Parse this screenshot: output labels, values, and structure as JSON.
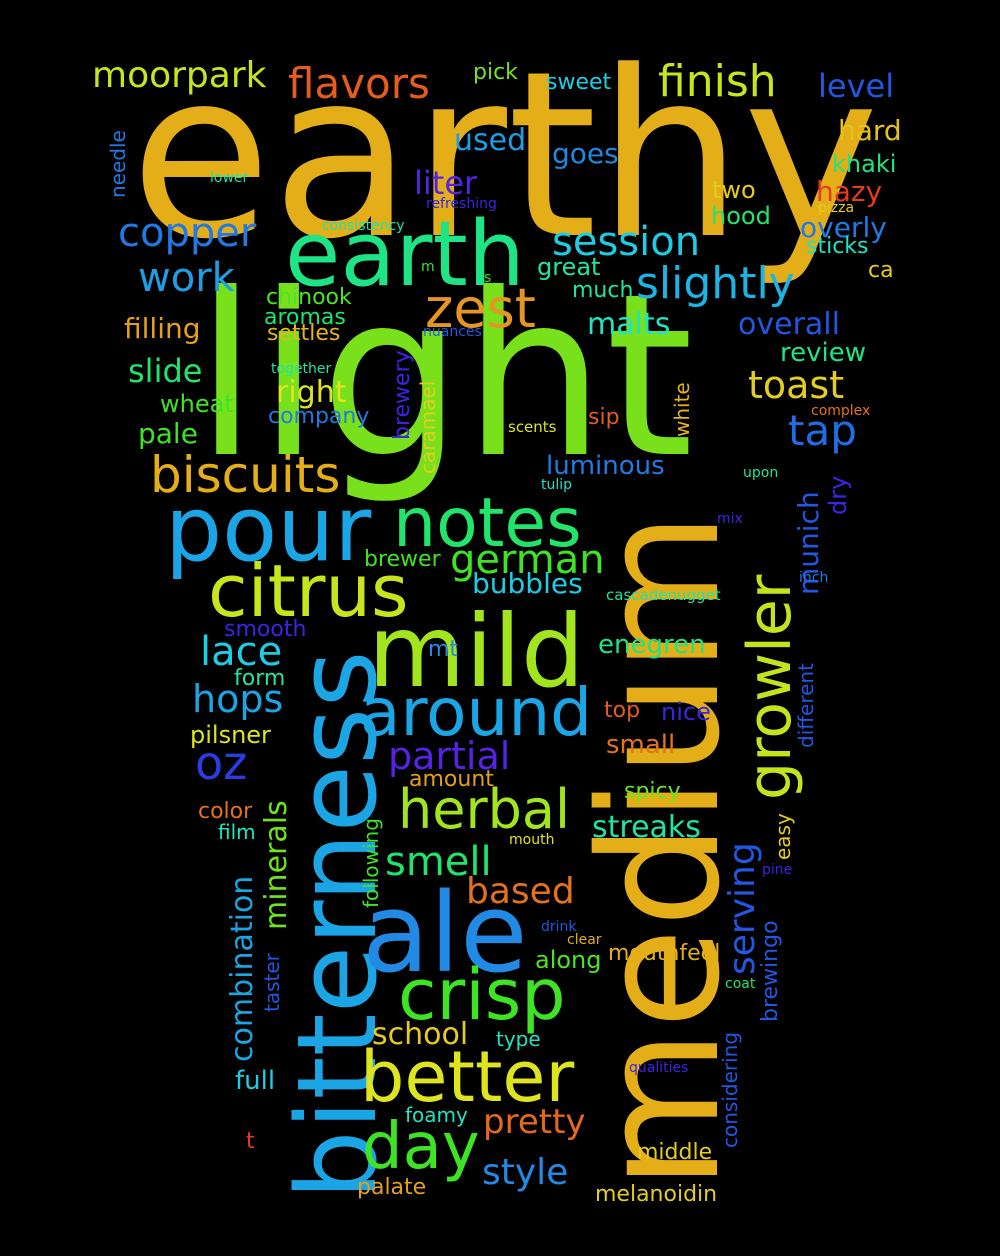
{
  "background": "#000000",
  "words": [
    {
      "id": "earthy",
      "text": "earthy",
      "color": "#e4ae19"
    },
    {
      "id": "light",
      "text": "light",
      "color": "#78e11b"
    },
    {
      "id": "medium",
      "text": "medium",
      "color": "#e4ae19"
    },
    {
      "id": "bitterness",
      "text": "bitterness",
      "color": "#1ca5e4"
    },
    {
      "id": "ale",
      "text": "ale",
      "color": "#2289e4"
    },
    {
      "id": "mild",
      "text": "mild",
      "color": "#a2e41d"
    },
    {
      "id": "earth",
      "text": "earth",
      "color": "#1ee486"
    },
    {
      "id": "pour",
      "text": "pour",
      "color": "#1ca5e4"
    },
    {
      "id": "notes",
      "text": "notes",
      "color": "#21e46a"
    },
    {
      "id": "citrus",
      "text": "citrus",
      "color": "#c8e41c"
    },
    {
      "id": "around",
      "text": "around",
      "color": "#1ca5e4"
    },
    {
      "id": "crisp",
      "text": "crisp",
      "color": "#3ee424"
    },
    {
      "id": "better",
      "text": "better",
      "color": "#dee41d"
    },
    {
      "id": "day",
      "text": "day",
      "color": "#3ee424"
    },
    {
      "id": "growler",
      "text": "growler",
      "color": "#c2e41c"
    },
    {
      "id": "zest",
      "text": "zest",
      "color": "#e49522"
    },
    {
      "id": "biscuits",
      "text": "biscuits",
      "color": "#e4ae19"
    },
    {
      "id": "herbal",
      "text": "herbal",
      "color": "#a2e41d"
    },
    {
      "id": "slightly",
      "text": "slightly",
      "color": "#1cb4e4"
    },
    {
      "id": "session",
      "text": "session",
      "color": "#1ecde4"
    },
    {
      "id": "flavors",
      "text": "flavors",
      "color": "#e45d1c"
    },
    {
      "id": "finish",
      "text": "finish",
      "color": "#c8e41c"
    },
    {
      "id": "moorpark",
      "text": "moorpark",
      "color": "#c8e41c"
    },
    {
      "id": "copper",
      "text": "copper",
      "color": "#2279e4"
    },
    {
      "id": "work",
      "text": "work",
      "color": "#1c9fe4"
    },
    {
      "id": "german",
      "text": "german",
      "color": "#3ee424"
    },
    {
      "id": "partial",
      "text": "partial",
      "color": "#5423e4"
    },
    {
      "id": "oz",
      "text": "oz",
      "color": "#2a3ce4"
    },
    {
      "id": "lace",
      "text": "lace",
      "color": "#1ecde4"
    },
    {
      "id": "hops",
      "text": "hops",
      "color": "#1ca5e4"
    },
    {
      "id": "smell",
      "text": "smell",
      "color": "#21e46a"
    },
    {
      "id": "based",
      "text": "based",
      "color": "#e4711c"
    },
    {
      "id": "tap",
      "text": "tap",
      "color": "#226de4"
    },
    {
      "id": "toast",
      "text": "toast",
      "color": "#e4cd1c"
    },
    {
      "id": "serving",
      "text": "serving",
      "color": "#2257e4"
    },
    {
      "id": "minerals",
      "text": "minerals",
      "color": "#6de41c"
    },
    {
      "id": "pretty",
      "text": "pretty",
      "color": "#e4691c"
    },
    {
      "id": "style",
      "text": "style",
      "color": "#2289e4"
    },
    {
      "id": "school",
      "text": "school",
      "color": "#e4cd1c"
    },
    {
      "id": "streaks",
      "text": "streaks",
      "color": "#1ee4a5"
    },
    {
      "id": "combination",
      "text": "combination",
      "color": "#1ca5e4"
    },
    {
      "id": "bubbles",
      "text": "bubbles",
      "color": "#1ecde4"
    },
    {
      "id": "luminous",
      "text": "luminous",
      "color": "#2279e4"
    },
    {
      "id": "malts",
      "text": "malts",
      "color": "#1ee4c0"
    },
    {
      "id": "overall",
      "text": "overall",
      "color": "#2257e4"
    },
    {
      "id": "slide",
      "text": "slide",
      "color": "#21e46a"
    },
    {
      "id": "filling",
      "text": "filling",
      "color": "#e4a01c"
    },
    {
      "id": "level",
      "text": "level",
      "color": "#2257e4"
    },
    {
      "id": "liter",
      "text": "liter",
      "color": "#5423e4"
    },
    {
      "id": "used",
      "text": "used",
      "color": "#1c9fe4"
    },
    {
      "id": "goes",
      "text": "goes",
      "color": "#1c8ae4"
    },
    {
      "id": "hard",
      "text": "hard",
      "color": "#e4c21c"
    },
    {
      "id": "khaki",
      "text": "khaki",
      "color": "#21e481"
    },
    {
      "id": "hazy",
      "text": "hazy",
      "color": "#e43b1c"
    },
    {
      "id": "overly",
      "text": "overly",
      "color": "#2279e4"
    },
    {
      "id": "sticks",
      "text": "sticks",
      "color": "#1ee4c0"
    },
    {
      "id": "ca",
      "text": "ca",
      "color": "#e4cd1c"
    },
    {
      "id": "hood",
      "text": "hood",
      "color": "#21e46a"
    },
    {
      "id": "two",
      "text": "two",
      "color": "#e4cd1c"
    },
    {
      "id": "munich",
      "text": "munich",
      "color": "#2257e4"
    },
    {
      "id": "dry",
      "text": "dry",
      "color": "#3c24e4"
    },
    {
      "id": "review",
      "text": "review",
      "color": "#1ee481"
    },
    {
      "id": "chinook",
      "text": "chinook",
      "color": "#4ce424"
    },
    {
      "id": "aromas",
      "text": "aromas",
      "color": "#21e46a"
    },
    {
      "id": "settles",
      "text": "settles",
      "color": "#e4b41c"
    },
    {
      "id": "right",
      "text": "right",
      "color": "#dee41d"
    },
    {
      "id": "company",
      "text": "company",
      "color": "#2279e4"
    },
    {
      "id": "wheat",
      "text": "wheat",
      "color": "#3ee424"
    },
    {
      "id": "pale",
      "text": "pale",
      "color": "#3ee424"
    },
    {
      "id": "great",
      "text": "great",
      "color": "#1ee4a5"
    },
    {
      "id": "much",
      "text": "much",
      "color": "#1ee4a5"
    },
    {
      "id": "pick",
      "text": "pick",
      "color": "#78e11b"
    },
    {
      "id": "sweet",
      "text": "sweet",
      "color": "#1ecde4"
    },
    {
      "id": "needle",
      "text": "needle",
      "color": "#2279e4"
    },
    {
      "id": "lower",
      "text": "lower",
      "color": "#1ee4a5"
    },
    {
      "id": "consistency",
      "text": "consistency",
      "color": "#1ee4a5"
    },
    {
      "id": "refreshing",
      "text": "refreshing",
      "color": "#3c24e4"
    },
    {
      "id": "pizza",
      "text": "pizza",
      "color": "#e4cd1c"
    },
    {
      "id": "m",
      "text": "m",
      "color": "#3ee424"
    },
    {
      "id": "s",
      "text": "s",
      "color": "#3ee424"
    },
    {
      "id": "nuances",
      "text": "nuances",
      "color": "#2257e4"
    },
    {
      "id": "together",
      "text": "together",
      "color": "#1ee4a5"
    },
    {
      "id": "brewery",
      "text": "brewery",
      "color": "#3c24e4"
    },
    {
      "id": "caramael",
      "text": "caramael",
      "color": "#e4cd1c"
    },
    {
      "id": "white",
      "text": "white",
      "color": "#e4b41c"
    },
    {
      "id": "sip",
      "text": "sip",
      "color": "#e45d1c"
    },
    {
      "id": "scents",
      "text": "scents",
      "color": "#dee41d"
    },
    {
      "id": "complex",
      "text": "complex",
      "color": "#e4711c"
    },
    {
      "id": "upon",
      "text": "upon",
      "color": "#1ee4a5"
    },
    {
      "id": "tulip",
      "text": "tulip",
      "color": "#1ee4c0"
    },
    {
      "id": "mix",
      "text": "mix",
      "color": "#3c24e4"
    },
    {
      "id": "inch",
      "text": "inch",
      "color": "#2279e4"
    },
    {
      "id": "cascadenugget",
      "text": "cascadenugget",
      "color": "#1ee4a5"
    },
    {
      "id": "brewer",
      "text": "brewer",
      "color": "#3ee424"
    },
    {
      "id": "enegren",
      "text": "enegren",
      "color": "#1ee481"
    },
    {
      "id": "smooth",
      "text": "smooth",
      "color": "#3c24e4"
    },
    {
      "id": "mt",
      "text": "mt",
      "color": "#2289e4"
    },
    {
      "id": "form",
      "text": "form",
      "color": "#1ee4a5"
    },
    {
      "id": "pilsner",
      "text": "pilsner",
      "color": "#dee41d"
    },
    {
      "id": "top",
      "text": "top",
      "color": "#e45d1c"
    },
    {
      "id": "nice",
      "text": "nice",
      "color": "#3c24e4"
    },
    {
      "id": "small",
      "text": "small",
      "color": "#e4711c"
    },
    {
      "id": "different",
      "text": "different",
      "color": "#2257e4"
    },
    {
      "id": "amount",
      "text": "amount",
      "color": "#e4a01c"
    },
    {
      "id": "color",
      "text": "color",
      "color": "#e4711c"
    },
    {
      "id": "film",
      "text": "film",
      "color": "#1ee4c0"
    },
    {
      "id": "spicy",
      "text": "spicy",
      "color": "#6de41c"
    },
    {
      "id": "following",
      "text": "following",
      "color": "#3ee424"
    },
    {
      "id": "mouth",
      "text": "mouth",
      "color": "#dee41d"
    },
    {
      "id": "easy",
      "text": "easy",
      "color": "#e4cd1c"
    },
    {
      "id": "pine",
      "text": "pine",
      "color": "#3c24e4"
    },
    {
      "id": "brewingo",
      "text": "brewingo",
      "color": "#2257e4"
    },
    {
      "id": "drink",
      "text": "drink",
      "color": "#2257e4"
    },
    {
      "id": "clear",
      "text": "clear",
      "color": "#e4ae19"
    },
    {
      "id": "mouthfeel",
      "text": "mouthfeel",
      "color": "#e4ae19"
    },
    {
      "id": "along",
      "text": "along",
      "color": "#4ce424"
    },
    {
      "id": "coat",
      "text": "coat",
      "color": "#21e46a"
    },
    {
      "id": "taster",
      "text": "taster",
      "color": "#2257e4"
    },
    {
      "id": "type",
      "text": "type",
      "color": "#1ee4c0"
    },
    {
      "id": "considering",
      "text": "considering",
      "color": "#2257e4"
    },
    {
      "id": "full",
      "text": "full",
      "color": "#1ecde4"
    },
    {
      "id": "qualities",
      "text": "qualities",
      "color": "#3c24e4"
    },
    {
      "id": "foamy",
      "text": "foamy",
      "color": "#1ee4c0"
    },
    {
      "id": "t",
      "text": "t",
      "color": "#e43b1c"
    },
    {
      "id": "middle",
      "text": "middle",
      "color": "#e4cd1c"
    },
    {
      "id": "palate",
      "text": "palate",
      "color": "#e4a01c"
    },
    {
      "id": "melanoidin",
      "text": "melanoidin",
      "color": "#e4cd1c"
    }
  ]
}
